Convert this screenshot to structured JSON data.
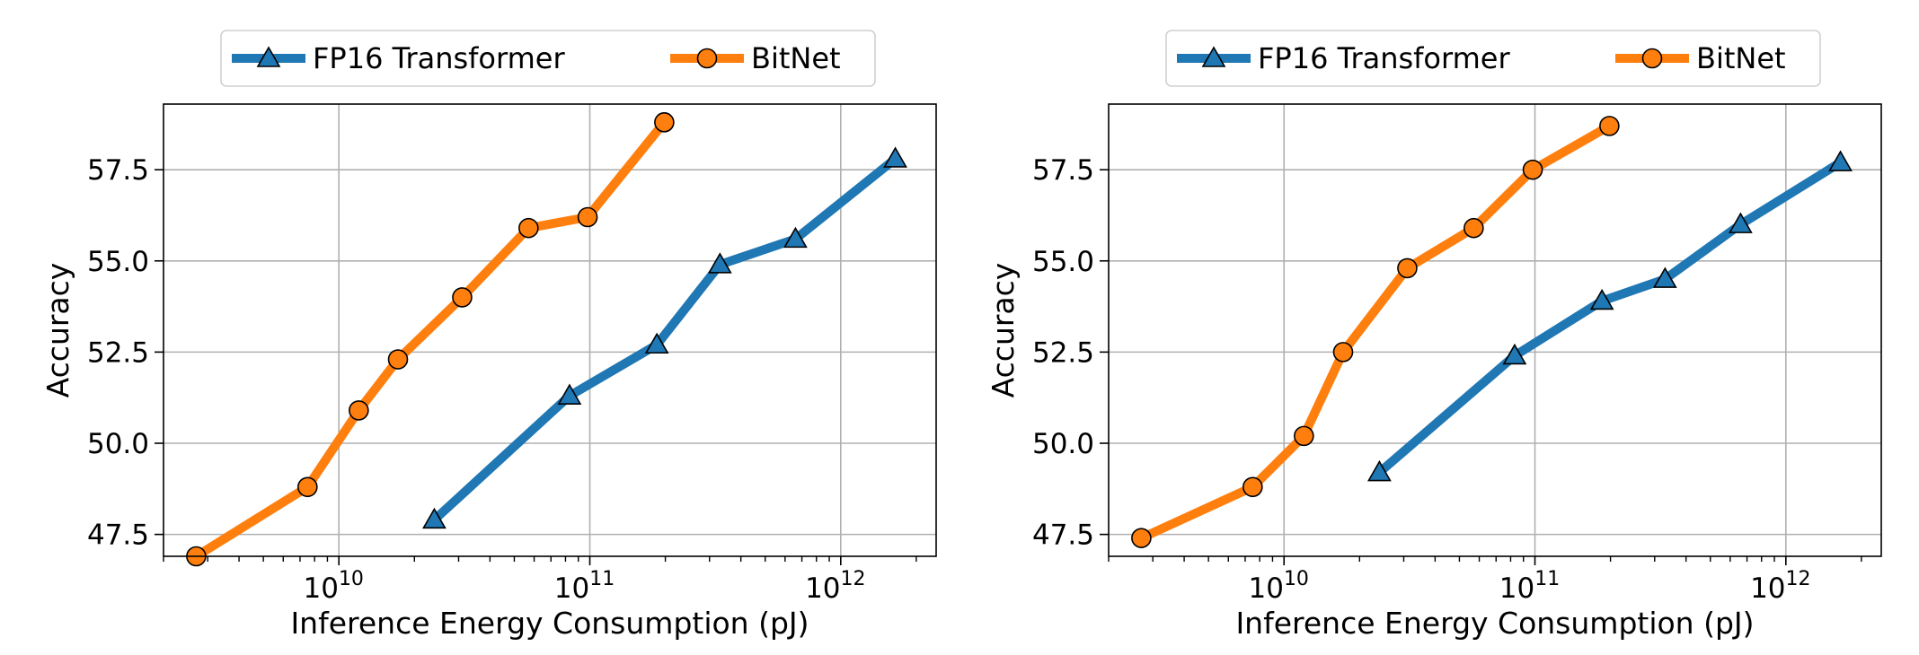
{
  "chart_data": [
    {
      "type": "line",
      "title": "",
      "xlabel": "Inference Energy Consumption (pJ)",
      "ylabel": "Accuracy",
      "xscale": "log",
      "xlim": [
        2000000000,
        2400000000000
      ],
      "ylim": [
        46.9,
        59.3
      ],
      "yticks": [
        47.5,
        50.0,
        52.5,
        55.0,
        57.5
      ],
      "ytick_labels": [
        "47.5",
        "50.0",
        "52.5",
        "55.0",
        "57.5"
      ],
      "xticks": [
        10000000000,
        100000000000,
        1000000000000
      ],
      "xtick_labels": [
        {
          "base": "10",
          "exp": "10"
        },
        {
          "base": "10",
          "exp": "11"
        },
        {
          "base": "10",
          "exp": "12"
        }
      ],
      "grid": true,
      "legend_position": "top-center-outside",
      "series": [
        {
          "name": "FP16 Transformer",
          "color": "#1f77b4",
          "marker": "triangle",
          "x": [
            24000000000,
            83000000000,
            185000000000,
            330000000000,
            660000000000,
            1650000000000
          ],
          "y": [
            47.9,
            51.3,
            52.7,
            54.9,
            55.6,
            57.8
          ]
        },
        {
          "name": "BitNet",
          "color": "#ff7f0e",
          "marker": "circle",
          "x": [
            2700000000,
            7500000000,
            12000000000,
            17200000000,
            31000000000,
            57000000000,
            98000000000,
            198000000000
          ],
          "y": [
            46.9,
            48.8,
            50.9,
            52.3,
            54.0,
            55.9,
            56.2,
            58.8
          ]
        }
      ]
    },
    {
      "type": "line",
      "title": "",
      "xlabel": "Inference Energy Consumption (pJ)",
      "ylabel": "Accuracy",
      "xscale": "log",
      "xlim": [
        2000000000,
        2400000000000
      ],
      "ylim": [
        46.9,
        59.3
      ],
      "yticks": [
        47.5,
        50.0,
        52.5,
        55.0,
        57.5
      ],
      "ytick_labels": [
        "47.5",
        "50.0",
        "52.5",
        "55.0",
        "57.5"
      ],
      "xticks": [
        10000000000,
        100000000000,
        1000000000000
      ],
      "xtick_labels": [
        {
          "base": "10",
          "exp": "10"
        },
        {
          "base": "10",
          "exp": "11"
        },
        {
          "base": "10",
          "exp": "12"
        }
      ],
      "grid": true,
      "legend_position": "top-center-outside",
      "series": [
        {
          "name": "FP16 Transformer",
          "color": "#1f77b4",
          "marker": "triangle",
          "x": [
            24000000000,
            83000000000,
            185000000000,
            330000000000,
            660000000000,
            1650000000000
          ],
          "y": [
            49.2,
            52.4,
            53.9,
            54.5,
            56.0,
            57.7
          ]
        },
        {
          "name": "BitNet",
          "color": "#ff7f0e",
          "marker": "circle",
          "x": [
            2700000000,
            7500000000,
            12000000000,
            17200000000,
            31000000000,
            57000000000,
            98000000000,
            198000000000
          ],
          "y": [
            47.4,
            48.8,
            50.2,
            52.5,
            54.8,
            55.9,
            57.5,
            58.7
          ]
        }
      ]
    }
  ]
}
